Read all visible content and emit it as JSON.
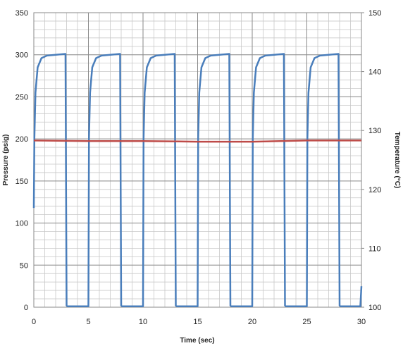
{
  "chart_data": {
    "type": "line",
    "xlabel": "Time (sec)",
    "ylabel": "Pressure (psig)",
    "y2label": "Temperature (°C)",
    "xlim": [
      0,
      30
    ],
    "xticks": [
      0,
      5,
      10,
      15,
      20,
      25,
      30
    ],
    "ylim": [
      0,
      350
    ],
    "yticks": [
      0,
      50,
      100,
      150,
      200,
      250,
      300,
      350
    ],
    "y2lim": [
      100,
      150
    ],
    "y2ticks": [
      100,
      110,
      120,
      130,
      140,
      150
    ],
    "grid": true,
    "series": [
      {
        "color": "#4a7ebb",
        "axis": "y",
        "x": [
          0,
          0.05,
          0.15,
          0.35,
          0.7,
          1.2,
          2.9,
          3.0,
          3.1,
          5,
          5.05,
          5.15,
          5.35,
          5.7,
          6.2,
          7.9,
          8.0,
          8.1,
          10,
          10.05,
          10.15,
          10.35,
          10.7,
          11.2,
          12.9,
          13.0,
          13.1,
          15,
          15.05,
          15.15,
          15.35,
          15.7,
          16.2,
          17.9,
          18.0,
          18.1,
          20,
          20.05,
          20.15,
          20.35,
          20.7,
          21.2,
          22.9,
          23.0,
          23.1,
          25,
          25.05,
          25.15,
          25.35,
          25.7,
          26.2,
          27.9,
          28.0,
          28.1,
          29.9,
          30
        ],
        "values": [
          118,
          200,
          255,
          285,
          296,
          299,
          301,
          2,
          1,
          1,
          200,
          255,
          285,
          296,
          299,
          301,
          2,
          1,
          1,
          200,
          255,
          285,
          296,
          299,
          301,
          2,
          1,
          1,
          200,
          255,
          285,
          296,
          299,
          301,
          2,
          1,
          1,
          200,
          255,
          285,
          296,
          299,
          301,
          2,
          1,
          1,
          200,
          255,
          285,
          296,
          299,
          301,
          2,
          1,
          1,
          25
        ]
      },
      {
        "color": "#be4b48",
        "axis": "y2",
        "x": [
          0,
          5,
          10,
          15,
          20,
          25,
          30
        ],
        "values": [
          128.3,
          128.2,
          128.2,
          128.1,
          128.1,
          128.3,
          128.3
        ]
      }
    ]
  }
}
